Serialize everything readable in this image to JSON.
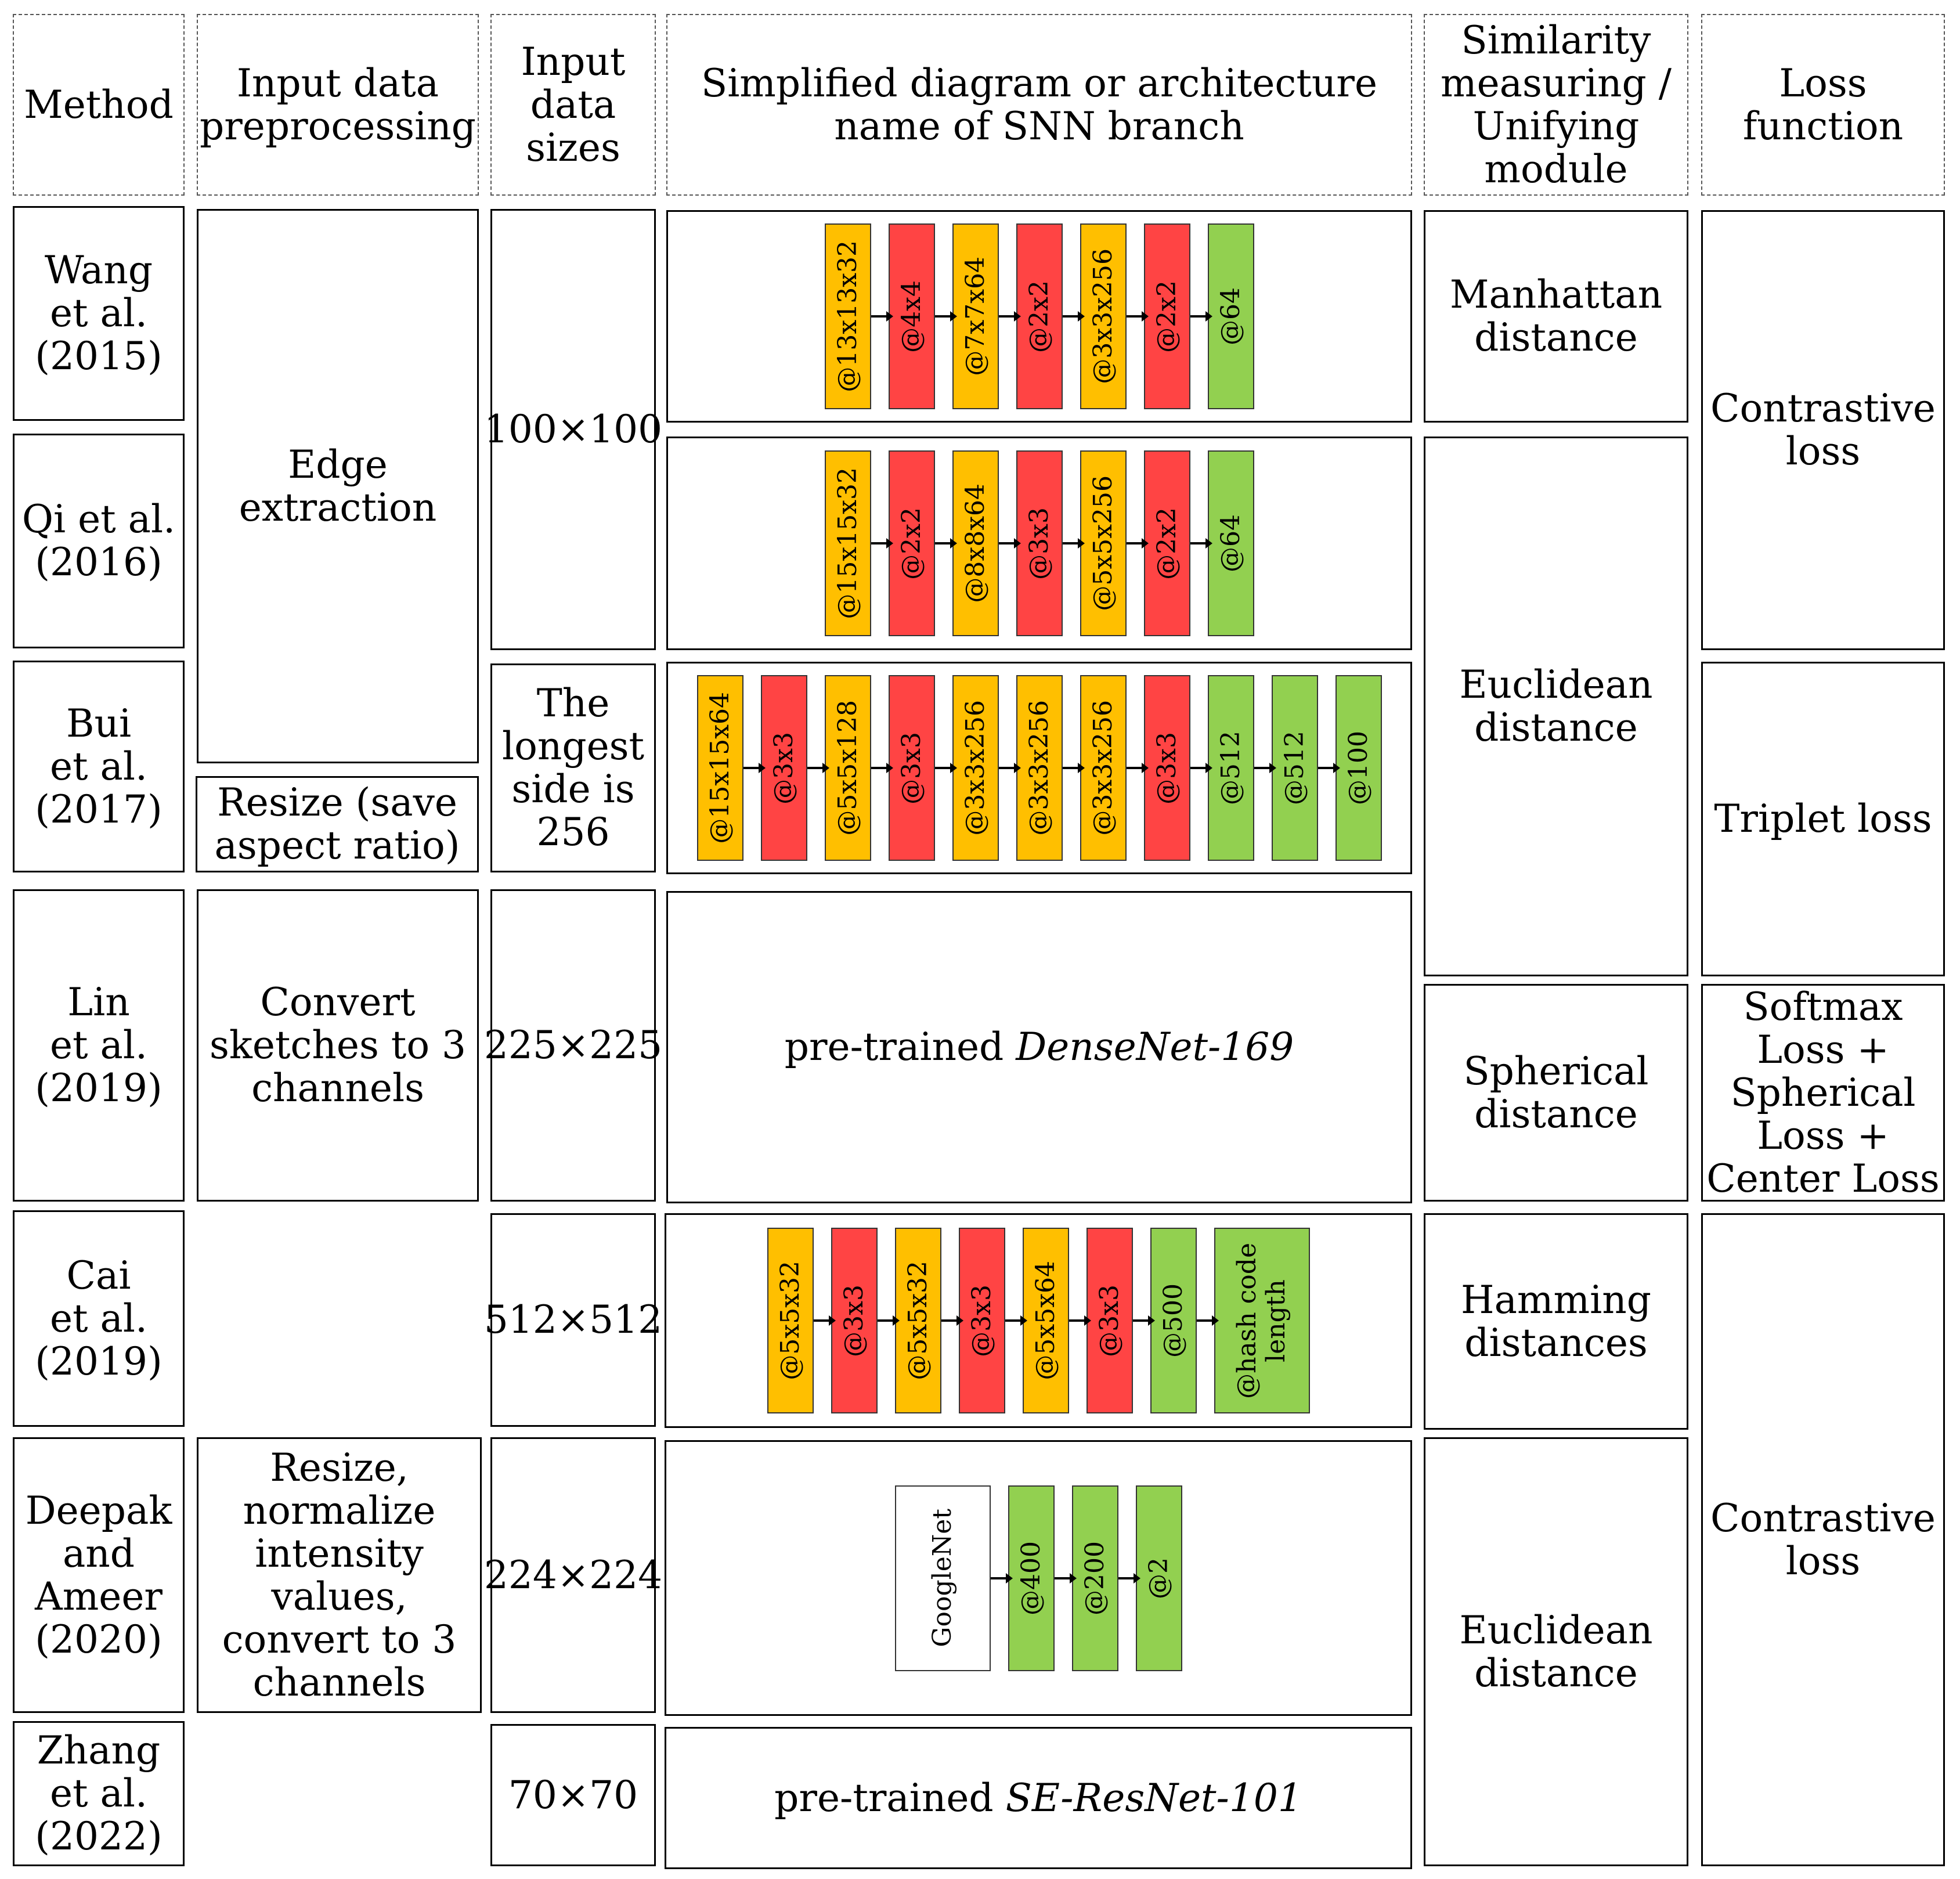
{
  "headers": {
    "method": "Method",
    "preprocessing": "Input data\npreprocessing",
    "sizes": "Input\ndata\nsizes",
    "diagram": "Simplified diagram or architecture\nname of SNN branch",
    "similarity": "Similarity\nmeasuring /\nUnifying\nmodule",
    "loss": "Loss\nfunction"
  },
  "methods": [
    "Wang\net al.\n(2015)",
    "Qi et al.\n(2016)",
    "Bui\net al.\n(2017)",
    "Lin\net al.\n(2019)",
    "Cai\net al.\n(2019)",
    "Deepak\nand\nAmeer\n(2020)",
    "Zhang\net al.\n(2022)"
  ],
  "preprocessing": {
    "edge": "Edge\nextraction",
    "resize": "Resize (save\naspect ratio)",
    "convert": "Convert\nsketches to 3\nchannels",
    "resize_norm": "Resize,\nnormalize\nintensity\nvalues,\nconvert to 3\nchannels"
  },
  "sizes": {
    "s100": "100×100",
    "s256": "The\nlongest\nside is\n256",
    "s225": "225×225",
    "s512": "512×512",
    "s224": "224×224",
    "s70": "70×70"
  },
  "diagrams": {
    "wang": [
      "@13x13x32",
      "@4x4",
      "@7x7x64",
      "@2x2",
      "@3x3x256",
      "@2x2",
      "@64"
    ],
    "qi": [
      "@15x15x32",
      "@2x2",
      "@8x8x64",
      "@3x3",
      "@5x5x256",
      "@2x2",
      "@64"
    ],
    "bui": [
      "@15x15x64",
      "@3x3",
      "@5x5x128",
      "@3x3",
      "@3x3x256",
      "@3x3x256",
      "@3x3x256",
      "@3x3",
      "@512",
      "@512",
      "@100"
    ],
    "lin_prefix": "pre-trained ",
    "lin_name": "DenseNet-169",
    "cai": [
      "@5x5x32",
      "@3x3",
      "@5x5x32",
      "@3x3",
      "@5x5x64",
      "@3x3",
      "@500",
      "@hash code\nlength"
    ],
    "deepak": [
      "GoogleNet",
      "@400",
      "@200",
      "@2"
    ],
    "zhang_prefix": "pre-trained ",
    "zhang_name": "SE-ResNet-101"
  },
  "similarity": {
    "manhattan": "Manhattan\ndistance",
    "euclid1": "Euclidean\ndistance",
    "spherical": "Spherical\ndistance",
    "hamming": "Hamming\ndistances",
    "euclid2": "Euclidean\ndistance"
  },
  "loss": {
    "contrastive1": "Contrastive\nloss",
    "triplet": "Triplet loss",
    "softmax": "Softmax\nLoss +\nSpherical\nLoss +\nCenter Loss",
    "contrastive2": "Contrastive\nloss"
  },
  "colors": {
    "conv": "#ffbf00",
    "pool": "#ff4444",
    "fc": "#92d050"
  }
}
